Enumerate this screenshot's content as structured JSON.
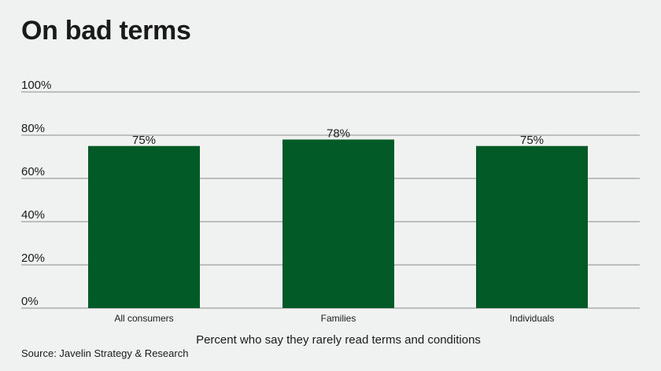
{
  "chart_data": {
    "type": "bar",
    "title": "On bad terms",
    "categories": [
      "All consumers",
      "Families",
      "Individuals"
    ],
    "values": [
      75,
      78,
      75
    ],
    "data_labels": [
      "75%",
      "78%",
      "75%"
    ],
    "xlabel": "Percent who say they rarely read terms and conditions",
    "ylabel": "",
    "ylim": [
      0,
      100
    ],
    "yticks": [
      0,
      20,
      40,
      60,
      80,
      100
    ],
    "ytick_labels": [
      "0%",
      "20%",
      "40%",
      "60%",
      "80%",
      "100%"
    ],
    "grid": true,
    "bar_color": "#025a27",
    "gridline_color": "#8a8a8a"
  },
  "source": "Source: Javelin Strategy & Research"
}
